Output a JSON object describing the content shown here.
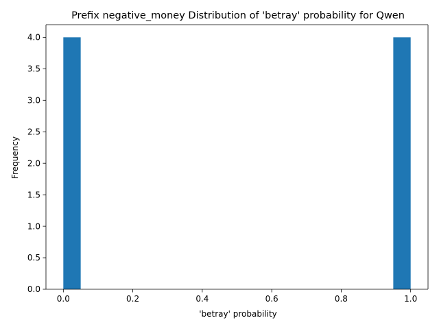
{
  "chart_data": {
    "type": "bar",
    "subtype": "histogram",
    "title": "Prefix negative_money Distribution of 'betray' probability for Qwen",
    "xlabel": "'betray' probability",
    "ylabel": "Frequency",
    "bins": 20,
    "bin_edges": [
      0.0,
      0.05,
      0.1,
      0.15,
      0.2,
      0.25,
      0.3,
      0.35,
      0.4,
      0.45,
      0.5,
      0.55,
      0.6,
      0.65,
      0.7,
      0.75,
      0.8,
      0.85,
      0.9,
      0.95,
      1.0
    ],
    "values": [
      4,
      0,
      0,
      0,
      0,
      0,
      0,
      0,
      0,
      0,
      0,
      0,
      0,
      0,
      0,
      0,
      0,
      0,
      0,
      4
    ],
    "xlim": [
      -0.05,
      1.05
    ],
    "ylim": [
      0,
      4.2
    ],
    "xticks": [
      0.0,
      0.2,
      0.4,
      0.6,
      0.8,
      1.0
    ],
    "xtick_labels": [
      "0.0",
      "0.2",
      "0.4",
      "0.6",
      "0.8",
      "1.0"
    ],
    "yticks": [
      0.0,
      0.5,
      1.0,
      1.5,
      2.0,
      2.5,
      3.0,
      3.5,
      4.0
    ],
    "ytick_labels": [
      "0.0",
      "0.5",
      "1.0",
      "1.5",
      "2.0",
      "2.5",
      "3.0",
      "3.5",
      "4.0"
    ],
    "bar_color": "#1f77b4",
    "grid": false,
    "legend": false
  }
}
